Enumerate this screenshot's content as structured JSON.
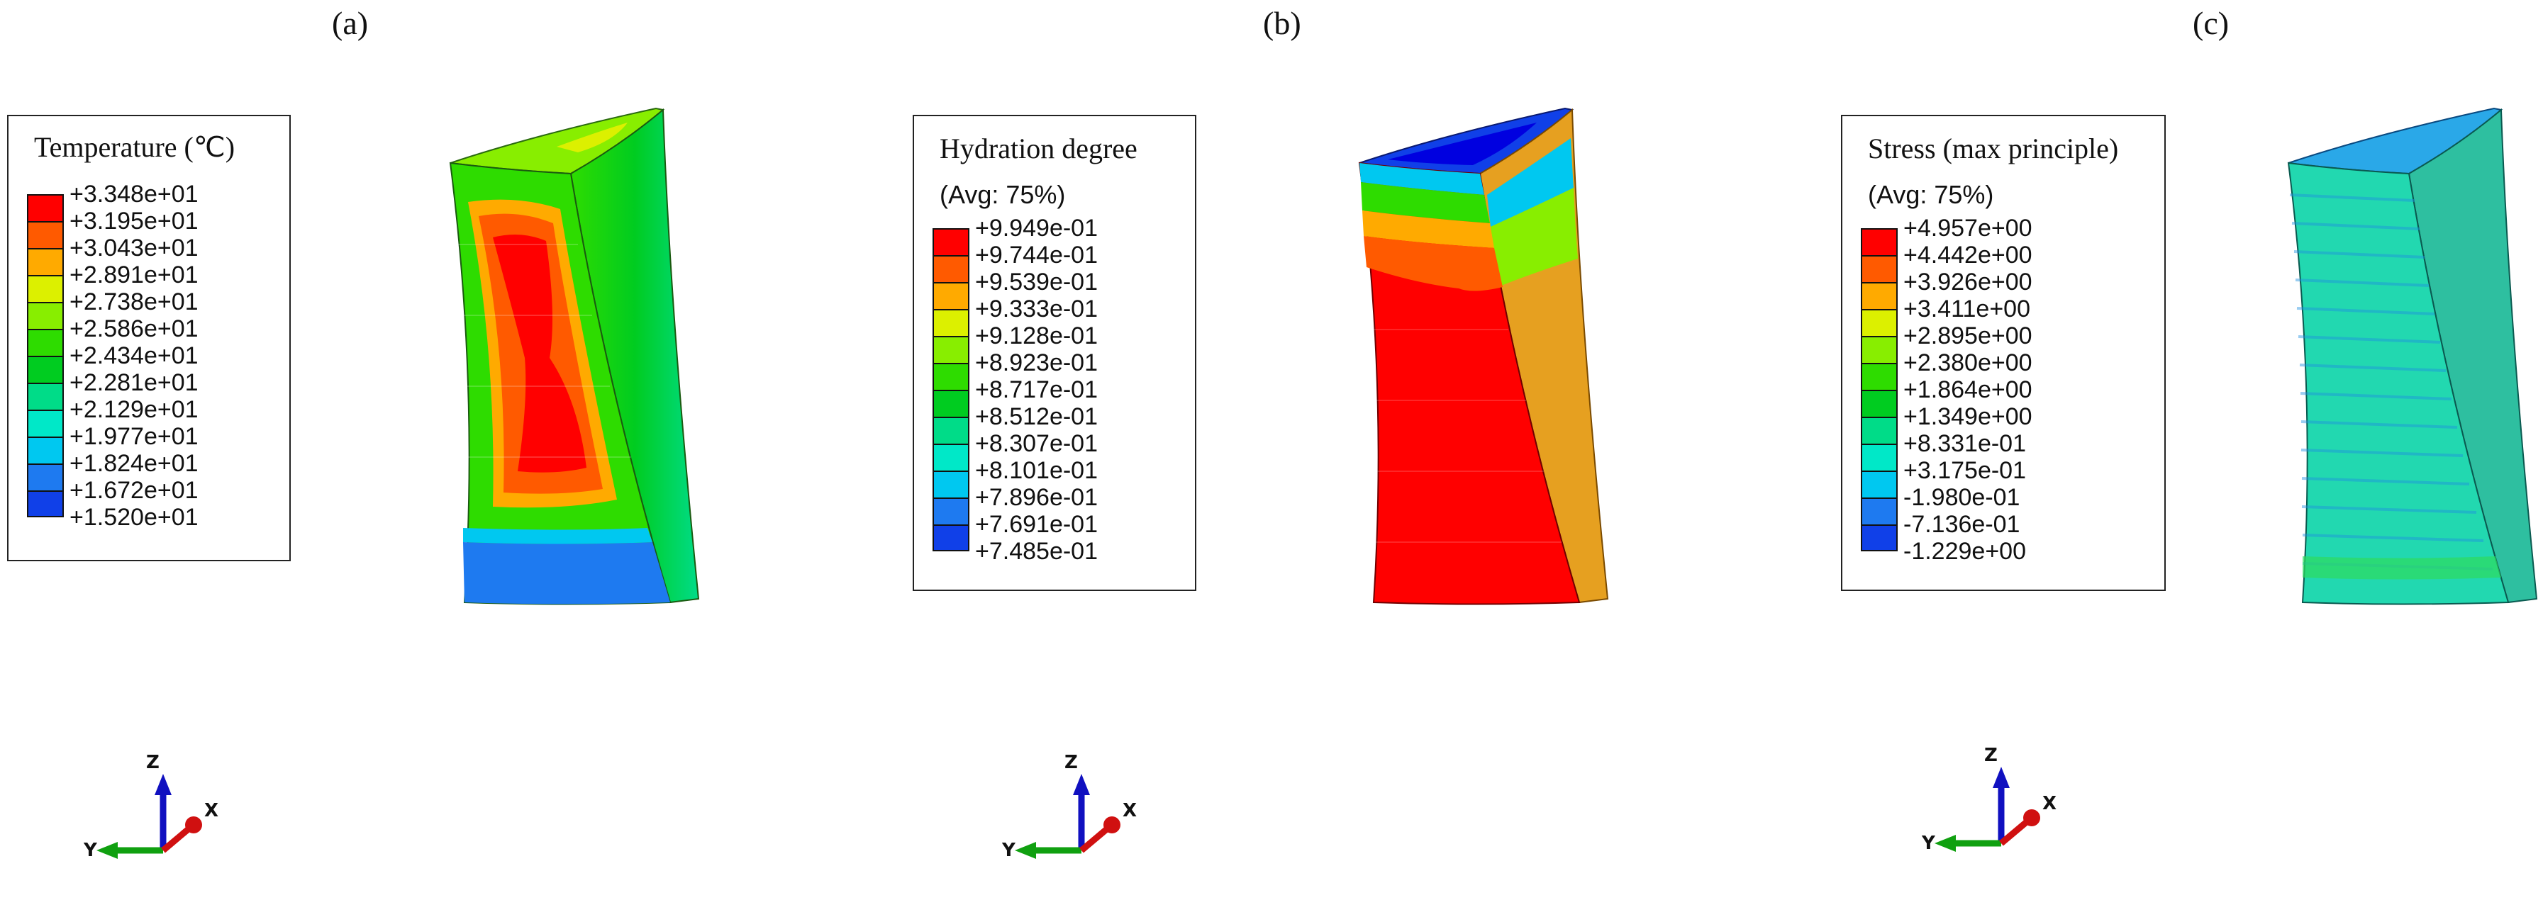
{
  "panels": [
    {
      "label": "(a)",
      "legend": {
        "title": "Temperature (℃)",
        "subtitle": "",
        "values": [
          "+3.348e+01",
          "+3.195e+01",
          "+3.043e+01",
          "+2.891e+01",
          "+2.738e+01",
          "+2.586e+01",
          "+2.434e+01",
          "+2.281e+01",
          "+2.129e+01",
          "+1.977e+01",
          "+1.824e+01",
          "+1.672e+01",
          "+1.520e+01"
        ]
      },
      "axes": {
        "z": "Z",
        "y": "Y",
        "x": "X"
      }
    },
    {
      "label": "(b)",
      "legend": {
        "title": "Hydration degree",
        "subtitle": "(Avg: 75%)",
        "values": [
          "+9.949e-01",
          "+9.744e-01",
          "+9.539e-01",
          "+9.333e-01",
          "+9.128e-01",
          "+8.923e-01",
          "+8.717e-01",
          "+8.512e-01",
          "+8.307e-01",
          "+8.101e-01",
          "+7.896e-01",
          "+7.691e-01",
          "+7.485e-01"
        ]
      },
      "axes": {
        "z": "Z",
        "y": "Y",
        "x": "X"
      }
    },
    {
      "label": "(c)",
      "legend": {
        "title": "Stress (max principle)",
        "subtitle": "(Avg: 75%)",
        "values": [
          "+4.957e+00",
          "+4.442e+00",
          "+3.926e+00",
          "+3.411e+00",
          "+2.895e+00",
          "+2.380e+00",
          "+1.864e+00",
          "+1.349e+00",
          "+8.331e-01",
          "+3.175e-01",
          "-1.980e-01",
          "-7.136e-01",
          "-1.229e+00"
        ]
      },
      "axes": {
        "z": "Z",
        "y": "Y",
        "x": "X"
      }
    }
  ],
  "colors": {
    "scale": [
      "#ff0000",
      "#ff5a00",
      "#ffaa00",
      "#dcf000",
      "#88ee00",
      "#2edc00",
      "#00cc20",
      "#00dc88",
      "#00e8c8",
      "#00c8f0",
      "#1e7af0",
      "#1040e8",
      "#0000e0"
    ]
  }
}
